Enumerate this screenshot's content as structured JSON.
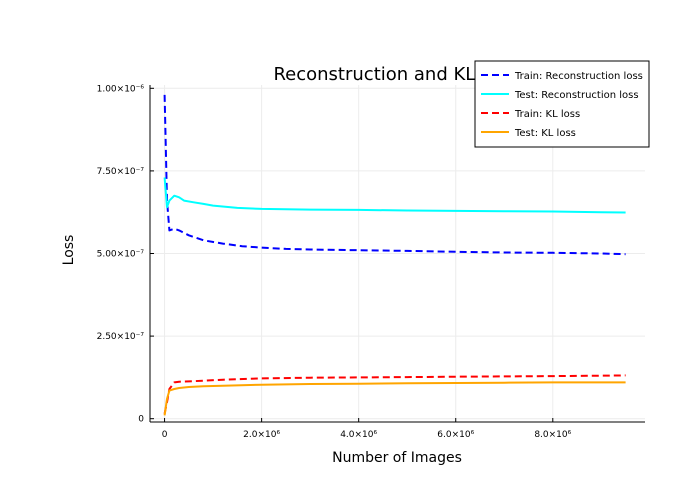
{
  "chart_data": {
    "type": "line",
    "title": "Reconstruction and KL Loss",
    "xlabel": "Number of Images",
    "ylabel": "Loss",
    "xlim": [
      -300000,
      9900000
    ],
    "ylim": [
      -1e-08,
      1.01e-06
    ],
    "grid": true,
    "legend_position": "top-right",
    "x_ticks": [
      {
        "value": 0,
        "label": "0"
      },
      {
        "value": 2000000,
        "label": "2.0×10⁶"
      },
      {
        "value": 4000000,
        "label": "4.0×10⁶"
      },
      {
        "value": 6000000,
        "label": "6.0×10⁶"
      },
      {
        "value": 8000000,
        "label": "8.0×10⁶"
      }
    ],
    "y_ticks": [
      {
        "value": 0,
        "label": "0"
      },
      {
        "value": 2.5e-07,
        "label": "2.50×10⁻⁷"
      },
      {
        "value": 5e-07,
        "label": "5.00×10⁻⁷"
      },
      {
        "value": 7.5e-07,
        "label": "7.50×10⁻⁷"
      },
      {
        "value": 1e-06,
        "label": "1.00×10⁻⁶"
      }
    ],
    "series": [
      {
        "name": "Train: Reconstruction loss",
        "color": "#0000ff",
        "dash": "dashed",
        "x": [
          0,
          50000,
          100000,
          200000,
          300000,
          500000,
          800000,
          1200000,
          1600000,
          2000000,
          2500000,
          3000000,
          4000000,
          5000000,
          6000000,
          7000000,
          8000000,
          9000000,
          9500000
        ],
        "y": [
          9.8e-07,
          6.6e-07,
          5.7e-07,
          5.75e-07,
          5.7e-07,
          5.55e-07,
          5.4e-07,
          5.3e-07,
          5.22e-07,
          5.18e-07,
          5.14e-07,
          5.12e-07,
          5.1e-07,
          5.08e-07,
          5.05e-07,
          5.03e-07,
          5.02e-07,
          5e-07,
          4.98e-07
        ]
      },
      {
        "name": "Test: Reconstruction loss",
        "color": "#00ffff",
        "dash": "solid",
        "x": [
          0,
          50000,
          100000,
          200000,
          300000,
          400000,
          600000,
          800000,
          1000000,
          1500000,
          2000000,
          3000000,
          4000000,
          5000000,
          6000000,
          7000000,
          8000000,
          9000000,
          9500000
        ],
        "y": [
          7.3e-07,
          6.4e-07,
          6.6e-07,
          6.75e-07,
          6.7e-07,
          6.6e-07,
          6.55e-07,
          6.5e-07,
          6.45e-07,
          6.38e-07,
          6.35e-07,
          6.33e-07,
          6.32e-07,
          6.3e-07,
          6.29e-07,
          6.28e-07,
          6.27e-07,
          6.25e-07,
          6.24e-07
        ]
      },
      {
        "name": "Train: KL loss",
        "color": "#ff0000",
        "dash": "dashed",
        "x": [
          0,
          50000,
          100000,
          200000,
          300000,
          500000,
          800000,
          1200000,
          2000000,
          3000000,
          4000000,
          5000000,
          6000000,
          7000000,
          8000000,
          9000000,
          9500000
        ],
        "y": [
          1.5e-08,
          5e-08,
          9e-08,
          1.1e-07,
          1.12e-07,
          1.13e-07,
          1.15e-07,
          1.18e-07,
          1.22e-07,
          1.24e-07,
          1.25e-07,
          1.26e-07,
          1.27e-07,
          1.28e-07,
          1.29e-07,
          1.3e-07,
          1.31e-07
        ]
      },
      {
        "name": "Test: KL loss",
        "color": "#ffa500",
        "dash": "solid",
        "x": [
          0,
          50000,
          100000,
          200000,
          300000,
          500000,
          800000,
          1200000,
          2000000,
          3000000,
          4000000,
          5000000,
          6000000,
          7000000,
          8000000,
          9000000,
          9500000
        ],
        "y": [
          1e-08,
          6e-08,
          8.5e-08,
          9e-08,
          9.3e-08,
          9.6e-08,
          9.8e-08,
          1e-07,
          1.03e-07,
          1.05e-07,
          1.06e-07,
          1.07e-07,
          1.08e-07,
          1.09e-07,
          1.1e-07,
          1.1e-07,
          1.1e-07
        ]
      }
    ]
  }
}
